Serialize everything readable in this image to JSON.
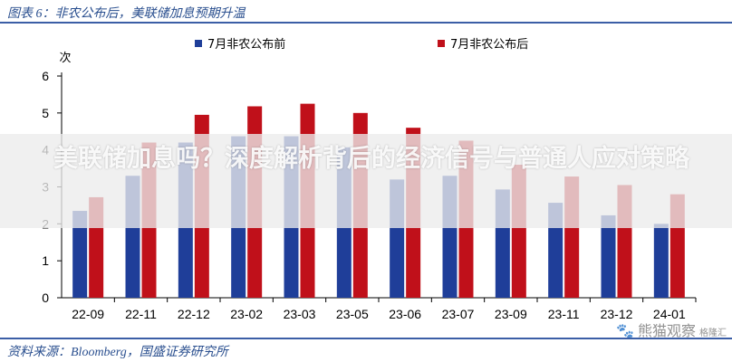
{
  "header": {
    "title": "图表 6：非农公布后，美联储加息预期升温"
  },
  "footer": {
    "source": "资料来源：Bloomberg，国盛证券研究所"
  },
  "overlay": {
    "headline": "美联储加息吗？深度解析背后的经济信号与普通人应对策略"
  },
  "watermark": {
    "brand": "熊猫观察",
    "sub": "格隆汇"
  },
  "colors": {
    "series_before": "#1f3e99",
    "series_after": "#c0101a",
    "axis": "#000000",
    "rule": "#3b5ea6"
  },
  "chart_data": {
    "type": "bar",
    "ylabel": "次",
    "ylim": [
      0,
      6
    ],
    "yticks": [
      0,
      1,
      2,
      3,
      4,
      5,
      6
    ],
    "categories": [
      "22-09",
      "22-11",
      "22-12",
      "23-02",
      "23-03",
      "23-05",
      "23-06",
      "23-07",
      "23-09",
      "23-11",
      "23-12",
      "24-01"
    ],
    "series": [
      {
        "name": "7月非农公布前",
        "values": [
          2.35,
          3.3,
          4.2,
          4.37,
          4.37,
          4.07,
          3.2,
          3.3,
          2.93,
          2.57,
          2.23,
          2.0
        ]
      },
      {
        "name": "7月非农公布后",
        "values": [
          2.72,
          4.2,
          4.95,
          5.18,
          5.25,
          5.0,
          4.6,
          4.25,
          3.6,
          3.28,
          3.05,
          2.8
        ]
      }
    ],
    "legend_position": "top",
    "grid": false
  }
}
